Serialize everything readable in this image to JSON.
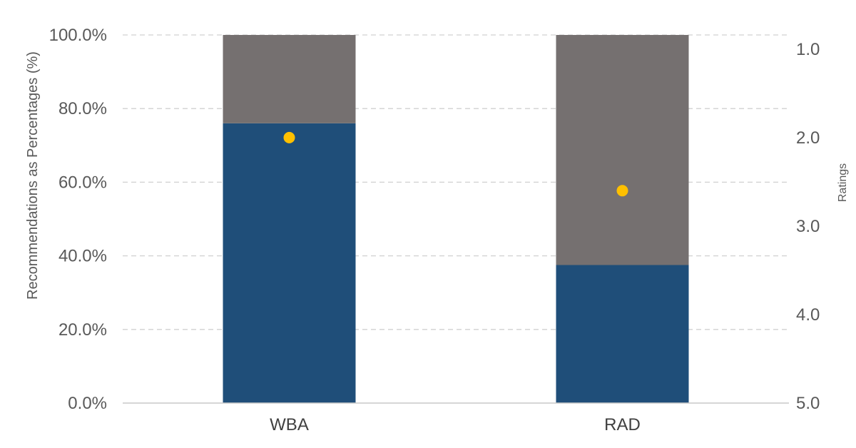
{
  "chart_data": {
    "type": "bar",
    "stacked": true,
    "categories": [
      "WBA",
      "RAD"
    ],
    "series": [
      {
        "values": [
          76.0,
          37.5
        ],
        "color": "#1f4e79"
      },
      {
        "values": [
          24.0,
          62.5
        ],
        "color": "#757070"
      }
    ],
    "ratings": {
      "values": [
        2.0,
        2.6
      ],
      "color": "#ffc000"
    },
    "ylabel": "Recommendations as Percentages (%)",
    "y2label": "Ratings",
    "ylim": [
      0,
      100
    ],
    "yticks": [
      "0.0%",
      "20.0%",
      "40.0%",
      "60.0%",
      "80.0%",
      "100.0%"
    ],
    "y2lim": [
      5.0,
      0.84
    ],
    "y2ticks": [
      "1.0",
      "2.0",
      "3.0",
      "4.0",
      "5.0"
    ],
    "grid": true
  }
}
